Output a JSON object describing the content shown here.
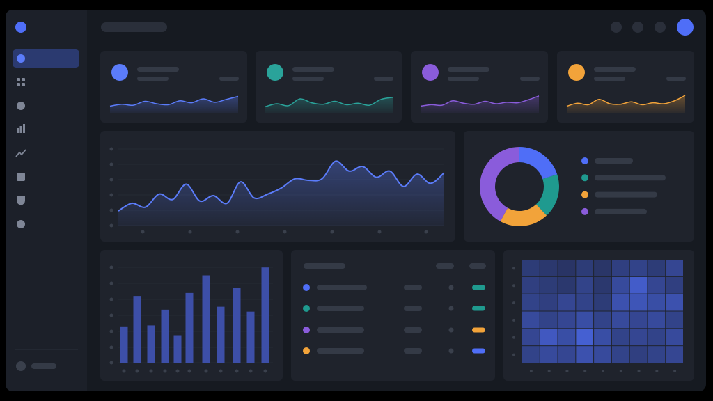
{
  "kpi_cards": [
    {
      "color": "#5b7cfa",
      "values": [
        30,
        38,
        34,
        50,
        40,
        36,
        52,
        44,
        60,
        46,
        58,
        70
      ],
      "ylim": [
        0,
        100
      ]
    },
    {
      "color": "#2aa39a",
      "values": [
        28,
        40,
        32,
        60,
        44,
        38,
        50,
        36,
        42,
        34,
        58,
        66
      ],
      "ylim": [
        0,
        100
      ]
    },
    {
      "color": "#8a5cdb",
      "values": [
        30,
        36,
        34,
        52,
        42,
        38,
        50,
        40,
        46,
        44,
        56,
        72
      ],
      "ylim": [
        0,
        100
      ]
    },
    {
      "color": "#f2a33a",
      "values": [
        30,
        42,
        36,
        58,
        40,
        38,
        48,
        36,
        44,
        40,
        52,
        74
      ],
      "ylim": [
        0,
        100
      ]
    }
  ],
  "main_chart": {
    "type": "line",
    "color": "#5b7cfa",
    "values": [
      20,
      30,
      25,
      42,
      35,
      55,
      33,
      40,
      30,
      58,
      37,
      42,
      50,
      62,
      60,
      62,
      85,
      72,
      78,
      64,
      72,
      52,
      68,
      56,
      70
    ],
    "ylim": [
      0,
      100
    ]
  },
  "donut": {
    "type": "pie",
    "values": [
      20,
      18,
      20,
      42
    ],
    "colors": [
      "#4f6ef7",
      "#1f9a8f",
      "#f2a33a",
      "#8a5cdb"
    ]
  },
  "bar_chart": {
    "type": "bar",
    "color": "#3d4fa8",
    "values": [
      37,
      68,
      38,
      54,
      28,
      71,
      89,
      57,
      76,
      52,
      97
    ],
    "ylim": [
      0,
      100
    ]
  },
  "table": {
    "rows": [
      {
        "dot": "#4f6ef7",
        "tag": "#1f9a8f"
      },
      {
        "dot": "#1f9a8f",
        "tag": "#1f9a8f"
      },
      {
        "dot": "#8a5cdb",
        "tag": "#f2a33a"
      },
      {
        "dot": "#f2a33a",
        "tag": "#4f6ef7"
      }
    ]
  },
  "heatmap": {
    "type": "heatmap",
    "clim": [
      0,
      100
    ],
    "low_color": "#1f2640",
    "high_color": "#4f6ef7",
    "values": [
      [
        30,
        25,
        20,
        30,
        22,
        35,
        40,
        30,
        45
      ],
      [
        35,
        30,
        25,
        40,
        25,
        50,
        75,
        45,
        35
      ],
      [
        40,
        35,
        45,
        40,
        30,
        60,
        65,
        55,
        60
      ],
      [
        50,
        40,
        45,
        55,
        40,
        50,
        45,
        50,
        40
      ],
      [
        45,
        70,
        55,
        80,
        55,
        40,
        45,
        40,
        50
      ],
      [
        40,
        50,
        45,
        60,
        50,
        40,
        35,
        40,
        45
      ]
    ]
  }
}
